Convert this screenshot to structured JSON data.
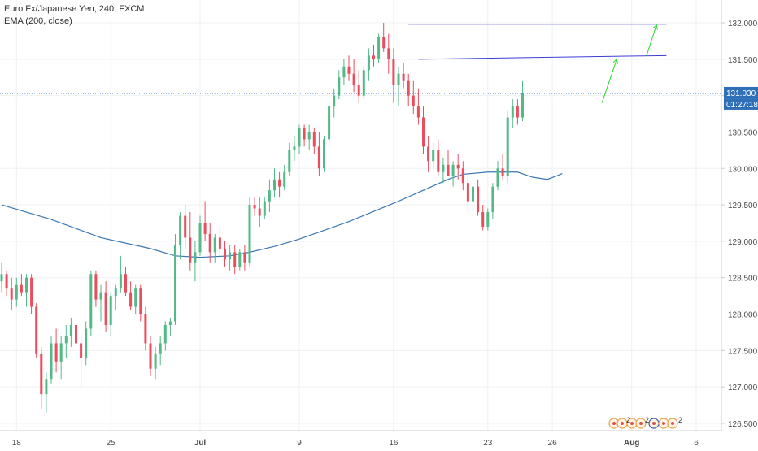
{
  "chart_data": {
    "type": "candlestick",
    "title": "Euro Fx/Japanese Yen, 240, FXCM",
    "indicator": "EMA (200, close)",
    "y_axis": {
      "position": "right",
      "ylim": [
        126.4,
        132.2
      ],
      "ticks": [
        "132.000",
        "131.500",
        "131.000",
        "130.500",
        "130.000",
        "129.500",
        "129.000",
        "128.500",
        "128.000",
        "127.500",
        "127.000",
        "126.500"
      ],
      "tick_values": [
        132.0,
        131.5,
        131.0,
        130.5,
        130.0,
        129.5,
        129.0,
        128.5,
        128.0,
        127.5,
        127.0,
        126.5
      ]
    },
    "x_axis": {
      "labels": [
        "18",
        "25",
        "Jul",
        "9",
        "16",
        "23",
        "26",
        "Aug",
        "6"
      ],
      "label_index": [
        3,
        22,
        40,
        60,
        79,
        98,
        111,
        127,
        140
      ],
      "label_bold": [
        false,
        false,
        true,
        false,
        false,
        false,
        false,
        true,
        false
      ]
    },
    "grid": true,
    "price_badge": "131.030",
    "countdown_badge": "01:27:18",
    "current_price": 131.03,
    "up_color": "#53b987",
    "down_color": "#eb4d5c",
    "ema_color": "#3c78b4",
    "annotation_color": "#3d3dd6",
    "arrow_color": "#27d827",
    "candles_ohlc": [
      [
        128.45,
        128.7,
        128.3,
        128.55
      ],
      [
        128.55,
        128.6,
        128.25,
        128.35
      ],
      [
        128.35,
        128.5,
        128.05,
        128.2
      ],
      [
        128.2,
        128.5,
        128.1,
        128.4
      ],
      [
        128.4,
        128.55,
        128.25,
        128.3
      ],
      [
        128.3,
        128.55,
        128.1,
        128.5
      ],
      [
        128.5,
        128.55,
        128.0,
        128.1
      ],
      [
        128.1,
        128.15,
        127.4,
        127.45
      ],
      [
        127.45,
        127.55,
        126.7,
        126.9
      ],
      [
        126.9,
        127.2,
        126.65,
        127.1
      ],
      [
        127.1,
        127.7,
        127.05,
        127.6
      ],
      [
        127.6,
        127.8,
        127.2,
        127.35
      ],
      [
        127.35,
        127.7,
        127.1,
        127.6
      ],
      [
        127.6,
        127.85,
        127.4,
        127.7
      ],
      [
        127.7,
        127.95,
        127.55,
        127.85
      ],
      [
        127.85,
        127.9,
        127.5,
        127.6
      ],
      [
        127.6,
        127.7,
        127.0,
        127.4
      ],
      [
        127.4,
        127.9,
        127.3,
        127.8
      ],
      [
        127.8,
        128.6,
        127.7,
        128.55
      ],
      [
        128.55,
        128.6,
        128.1,
        128.2
      ],
      [
        128.2,
        128.4,
        127.9,
        128.3
      ],
      [
        128.3,
        128.45,
        127.75,
        127.85
      ],
      [
        127.85,
        128.3,
        127.7,
        128.25
      ],
      [
        128.25,
        128.4,
        128.05,
        128.35
      ],
      [
        128.35,
        128.8,
        128.3,
        128.55
      ],
      [
        128.55,
        128.65,
        128.25,
        128.3
      ],
      [
        128.3,
        128.45,
        128.05,
        128.1
      ],
      [
        128.1,
        128.4,
        128.0,
        128.35
      ],
      [
        128.35,
        128.4,
        127.9,
        128.0
      ],
      [
        128.0,
        128.1,
        127.5,
        127.6
      ],
      [
        127.6,
        127.7,
        127.15,
        127.25
      ],
      [
        127.25,
        127.55,
        127.1,
        127.45
      ],
      [
        127.45,
        127.7,
        127.3,
        127.6
      ],
      [
        127.6,
        127.9,
        127.5,
        127.85
      ],
      [
        127.85,
        127.95,
        127.7,
        127.9
      ],
      [
        127.9,
        129.1,
        127.85,
        128.95
      ],
      [
        128.95,
        129.4,
        128.75,
        129.35
      ],
      [
        129.35,
        129.5,
        128.9,
        129.05
      ],
      [
        129.05,
        129.4,
        128.6,
        128.7
      ],
      [
        128.7,
        129.0,
        128.45,
        128.85
      ],
      [
        128.85,
        129.35,
        128.8,
        129.25
      ],
      [
        129.25,
        129.55,
        129.0,
        129.1
      ],
      [
        129.1,
        129.25,
        128.7,
        128.85
      ],
      [
        128.85,
        129.1,
        128.7,
        129.05
      ],
      [
        129.05,
        129.2,
        128.8,
        128.9
      ],
      [
        128.9,
        129.0,
        128.65,
        128.75
      ],
      [
        128.75,
        128.95,
        128.6,
        128.85
      ],
      [
        128.85,
        128.95,
        128.55,
        128.65
      ],
      [
        128.65,
        128.9,
        128.6,
        128.85
      ],
      [
        128.85,
        128.95,
        128.6,
        128.7
      ],
      [
        128.7,
        129.6,
        128.65,
        129.5
      ],
      [
        129.5,
        129.6,
        129.35,
        129.45
      ],
      [
        129.45,
        129.6,
        129.2,
        129.35
      ],
      [
        129.35,
        129.6,
        129.3,
        129.55
      ],
      [
        129.55,
        129.85,
        129.4,
        129.7
      ],
      [
        129.7,
        130.0,
        129.6,
        129.85
      ],
      [
        129.85,
        129.95,
        129.6,
        129.75
      ],
      [
        129.75,
        130.05,
        129.7,
        129.95
      ],
      [
        129.95,
        130.35,
        129.9,
        130.25
      ],
      [
        130.25,
        130.45,
        130.1,
        130.3
      ],
      [
        130.3,
        130.6,
        130.2,
        130.55
      ],
      [
        130.55,
        130.6,
        130.3,
        130.4
      ],
      [
        130.4,
        130.6,
        130.25,
        130.5
      ],
      [
        130.5,
        130.55,
        130.2,
        130.3
      ],
      [
        130.3,
        130.5,
        129.9,
        130.0
      ],
      [
        130.0,
        130.45,
        129.95,
        130.4
      ],
      [
        130.4,
        130.9,
        130.3,
        130.85
      ],
      [
        130.85,
        131.1,
        130.7,
        131.0
      ],
      [
        131.0,
        131.35,
        130.95,
        131.25
      ],
      [
        131.25,
        131.5,
        131.15,
        131.4
      ],
      [
        131.4,
        131.55,
        131.2,
        131.3
      ],
      [
        131.3,
        131.5,
        131.05,
        131.15
      ],
      [
        131.15,
        131.35,
        130.9,
        131.0
      ],
      [
        131.0,
        131.4,
        130.95,
        131.35
      ],
      [
        131.35,
        131.65,
        131.2,
        131.55
      ],
      [
        131.55,
        131.7,
        131.4,
        131.5
      ],
      [
        131.5,
        131.85,
        131.45,
        131.8
      ],
      [
        131.8,
        132.0,
        131.6,
        131.65
      ],
      [
        131.65,
        131.85,
        131.3,
        131.5
      ],
      [
        131.5,
        131.65,
        130.9,
        131.15
      ],
      [
        131.15,
        131.4,
        130.85,
        131.3
      ],
      [
        131.3,
        131.45,
        131.1,
        131.2
      ],
      [
        131.2,
        131.3,
        130.85,
        131.0
      ],
      [
        131.0,
        131.2,
        130.75,
        130.85
      ],
      [
        130.85,
        131.1,
        130.6,
        130.7
      ],
      [
        130.7,
        130.85,
        130.2,
        130.3
      ],
      [
        130.3,
        130.45,
        129.95,
        130.1
      ],
      [
        130.1,
        130.35,
        130.0,
        130.25
      ],
      [
        130.25,
        130.4,
        129.9,
        129.95
      ],
      [
        129.95,
        130.15,
        129.8,
        130.05
      ],
      [
        130.05,
        130.25,
        129.9,
        129.9
      ],
      [
        129.9,
        130.1,
        129.75,
        130.05
      ],
      [
        130.05,
        130.2,
        129.85,
        130.0
      ],
      [
        130.0,
        130.1,
        129.7,
        129.8
      ],
      [
        129.8,
        129.95,
        129.4,
        129.55
      ],
      [
        129.55,
        129.8,
        129.5,
        129.75
      ],
      [
        129.75,
        129.85,
        129.35,
        129.4
      ],
      [
        129.4,
        129.5,
        129.15,
        129.2
      ],
      [
        129.2,
        129.45,
        129.15,
        129.4
      ],
      [
        129.4,
        129.8,
        129.3,
        129.75
      ],
      [
        129.75,
        130.1,
        129.7,
        130.0
      ],
      [
        130.0,
        130.2,
        129.85,
        129.9
      ],
      [
        129.9,
        130.8,
        129.8,
        130.7
      ],
      [
        130.7,
        130.95,
        130.55,
        130.85
      ],
      [
        130.85,
        130.95,
        130.6,
        130.7
      ],
      [
        130.7,
        131.2,
        130.65,
        131.03
      ]
    ],
    "ema_200": [
      [
        0,
        129.5
      ],
      [
        10,
        129.3
      ],
      [
        20,
        129.05
      ],
      [
        30,
        128.9
      ],
      [
        35,
        128.8
      ],
      [
        40,
        128.78
      ],
      [
        46,
        128.8
      ],
      [
        50,
        128.85
      ],
      [
        55,
        128.93
      ],
      [
        60,
        129.03
      ],
      [
        70,
        129.27
      ],
      [
        80,
        129.55
      ],
      [
        86,
        129.73
      ],
      [
        90,
        129.85
      ],
      [
        93,
        129.92
      ],
      [
        98,
        129.95
      ],
      [
        104,
        129.95
      ],
      [
        107,
        129.88
      ],
      [
        110,
        129.85
      ],
      [
        112,
        129.9
      ],
      [
        113,
        129.93
      ]
    ],
    "annotations": [
      {
        "type": "line",
        "from": [
          82,
          131.98
        ],
        "to": [
          134,
          131.98
        ]
      },
      {
        "type": "line",
        "from": [
          84,
          131.5
        ],
        "to": [
          134,
          131.55
        ]
      },
      {
        "type": "arrow",
        "from": [
          121,
          130.9
        ],
        "to": [
          124,
          131.5
        ]
      },
      {
        "type": "arrow",
        "from": [
          130,
          131.55
        ],
        "to": [
          132,
          131.97
        ]
      }
    ]
  },
  "badges_row": {
    "count_a": "2",
    "count_b": "2",
    "count_c": "2"
  }
}
